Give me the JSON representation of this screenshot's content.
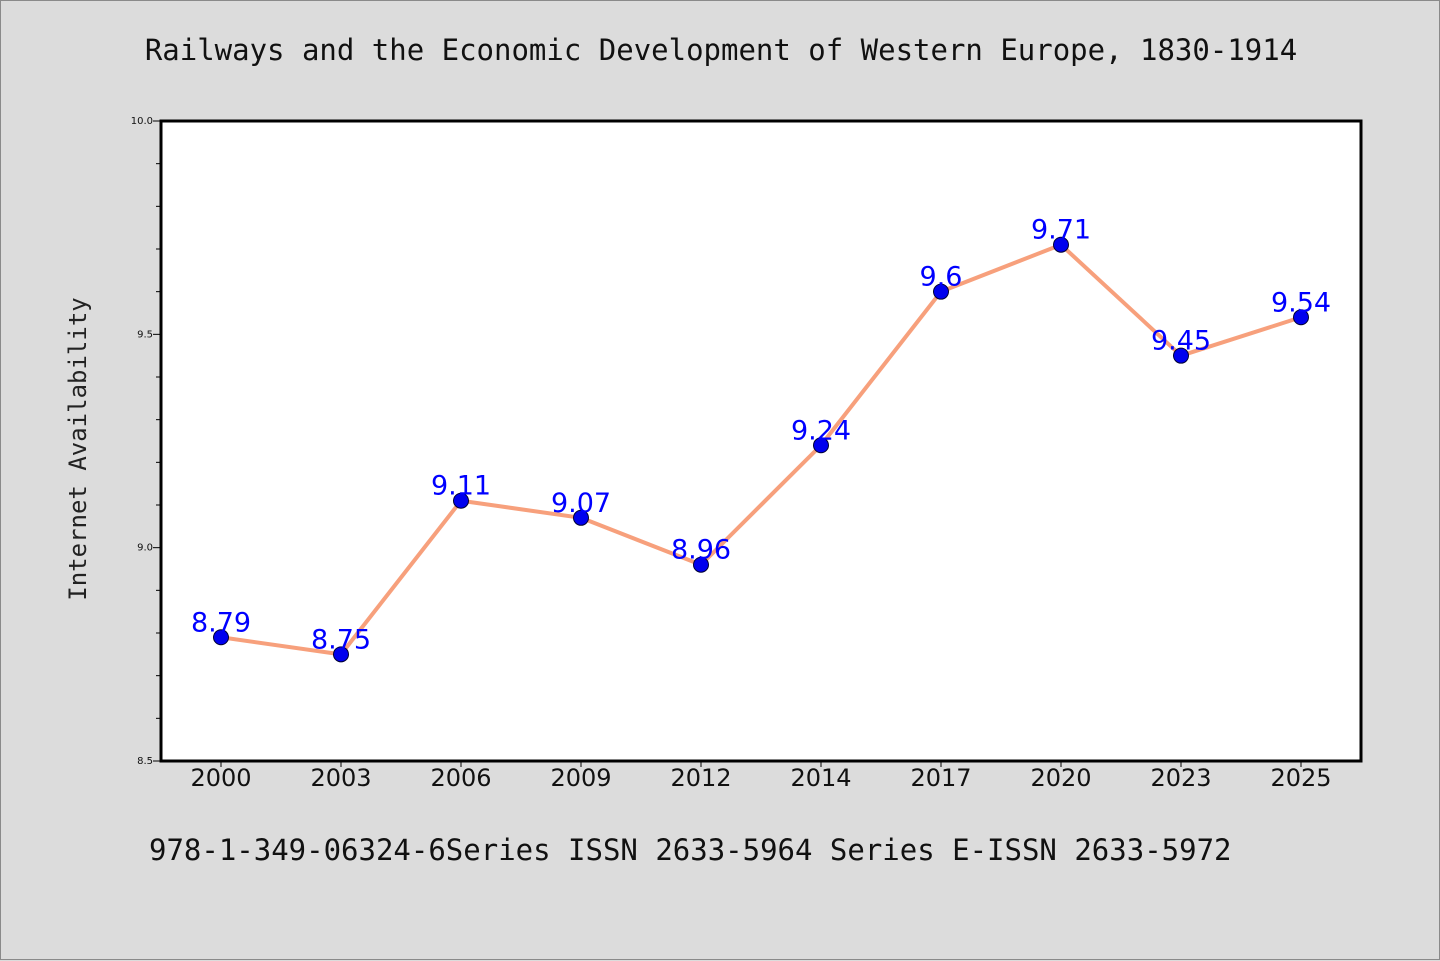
{
  "title": "Railways and the Economic Development of Western Europe, 1830-1914",
  "footer": "978-1-349-06324-6Series ISSN 2633-5964 Series E-ISSN 2633-5972",
  "colors": {
    "background": "#dcdcdc",
    "plot_background": "#ffffff",
    "line": "#f7a07c",
    "marker": "#0000ee",
    "data_label": "#0000ff"
  },
  "chart_data": {
    "type": "line",
    "title": "Railways and the Economic Development of Western Europe, 1830-1914",
    "xlabel": "",
    "ylabel": "Internet Availability",
    "categories": [
      "2000",
      "2003",
      "2006",
      "2009",
      "2012",
      "2014",
      "2017",
      "2020",
      "2023",
      "2025"
    ],
    "series": [
      {
        "values": [
          8.79,
          8.75,
          9.11,
          9.07,
          8.96,
          9.24,
          9.6,
          9.71,
          9.45,
          9.54
        ]
      }
    ],
    "data_labels": [
      "8.79",
      "8.75",
      "9.11",
      "9.07",
      "8.96",
      "9.24",
      "9.6",
      "9.71",
      "9.45",
      "9.54"
    ],
    "ylim": [
      8.5,
      10.0
    ],
    "y_ticks": [
      "8.5",
      "9.0",
      "9.5",
      "10.0"
    ],
    "grid": false,
    "legend": "none"
  }
}
